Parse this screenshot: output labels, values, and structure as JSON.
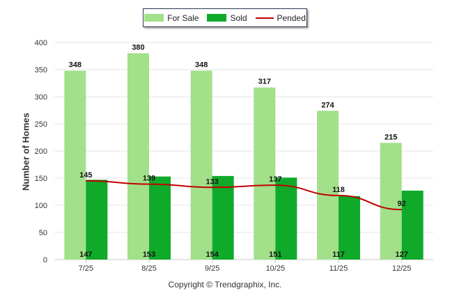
{
  "chart_data": {
    "type": "bar",
    "categories": [
      "7/25",
      "8/25",
      "9/25",
      "10/25",
      "11/25",
      "12/25"
    ],
    "series": [
      {
        "name": "For Sale",
        "kind": "bar",
        "color": "#a2e08a",
        "values": [
          348,
          380,
          348,
          317,
          274,
          215
        ]
      },
      {
        "name": "Sold",
        "kind": "bar",
        "color": "#10aa2a",
        "values": [
          147,
          153,
          154,
          151,
          117,
          127
        ]
      },
      {
        "name": "Pended",
        "kind": "line",
        "color": "#c00000",
        "values": [
          145,
          139,
          133,
          137,
          118,
          92
        ]
      }
    ],
    "ylabel": "Number of Homes",
    "ylim": [
      0,
      400
    ],
    "yticks": [
      0,
      50,
      100,
      150,
      200,
      250,
      300,
      350,
      400
    ],
    "grid": true,
    "legend_position": "top-center"
  },
  "footer": {
    "copyright": "Copyright © Trendgraphix, Inc."
  }
}
